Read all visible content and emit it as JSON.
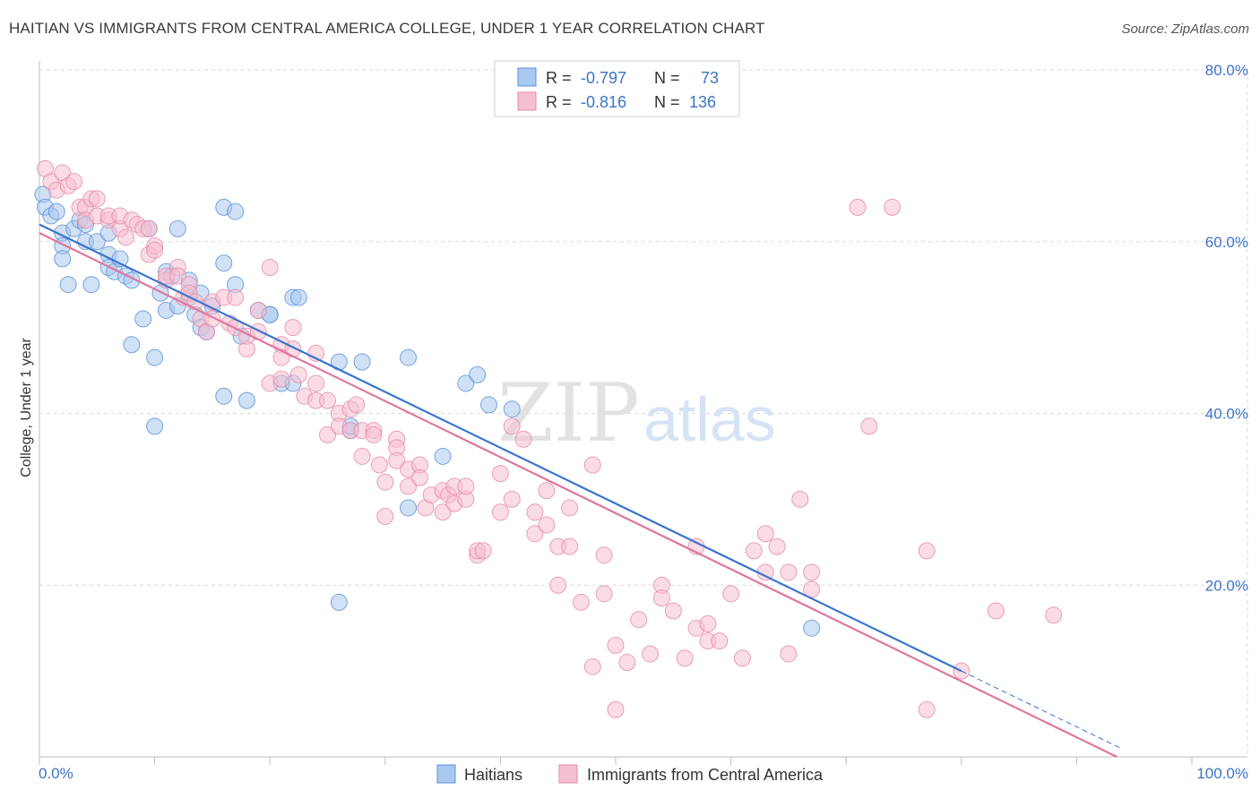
{
  "title": "HAITIAN VS IMMIGRANTS FROM CENTRAL AMERICA COLLEGE, UNDER 1 YEAR CORRELATION CHART",
  "source": "Source: ZipAtlas.com",
  "watermark": "ZIPatlas",
  "colors": {
    "blue_fill": "#a9c8ef",
    "blue_stroke": "#5a8fd6",
    "blue_line": "#3a74cf",
    "pink_fill": "#f6bfd0",
    "pink_stroke": "#e58aa8",
    "pink_line": "#e0769c",
    "axis_text": "#3b73c8",
    "grid": "#d9d9d9"
  },
  "legend": {
    "rows": [
      {
        "r_label": "R =",
        "r_value": "-0.797",
        "n_label": "N =",
        "n_value": "73"
      },
      {
        "r_label": "R =",
        "r_value": "-0.816",
        "n_label": "N =",
        "n_value": "136"
      }
    ]
  },
  "chart_data": {
    "type": "scatter",
    "ylabel": "College, Under 1 year",
    "xlim": [
      0,
      100
    ],
    "ylim": [
      0,
      80
    ],
    "x_tick_labels": [
      "0.0%",
      "100.0%"
    ],
    "y_ticks": [
      {
        "value": 20,
        "label": "20.0%"
      },
      {
        "value": 40,
        "label": "40.0%"
      },
      {
        "value": 60,
        "label": "60.0%"
      },
      {
        "value": 80,
        "label": "80.0%"
      }
    ],
    "grid": true,
    "legend_position": "top-center",
    "series": [
      {
        "name": "Haitians",
        "color": "#5a8fd6",
        "trend": {
          "x0": 0,
          "y0": 62.0,
          "x1": 80,
          "y1": 10.0,
          "dash_to_x": 94
        },
        "points": [
          [
            0.3,
            65.5
          ],
          [
            0.5,
            64
          ],
          [
            1,
            63
          ],
          [
            1.5,
            63.5
          ],
          [
            2,
            61
          ],
          [
            2,
            59.5
          ],
          [
            2,
            58
          ],
          [
            2.5,
            55
          ],
          [
            3,
            61.5
          ],
          [
            3.5,
            62.5
          ],
          [
            4,
            62
          ],
          [
            4,
            60
          ],
          [
            4.5,
            55
          ],
          [
            5,
            60
          ],
          [
            6,
            61
          ],
          [
            6,
            58.5
          ],
          [
            6,
            57
          ],
          [
            6.5,
            56.5
          ],
          [
            7,
            58
          ],
          [
            7.5,
            56
          ],
          [
            8,
            55.5
          ],
          [
            8,
            48
          ],
          [
            9,
            51
          ],
          [
            9.5,
            61.5
          ],
          [
            10,
            46.5
          ],
          [
            10,
            38.5
          ],
          [
            10.5,
            54
          ],
          [
            11,
            56.5
          ],
          [
            11,
            52
          ],
          [
            11.5,
            56
          ],
          [
            12,
            52.5
          ],
          [
            12,
            61.5
          ],
          [
            13,
            55.5
          ],
          [
            13,
            53.5
          ],
          [
            13.5,
            51.5
          ],
          [
            14,
            54
          ],
          [
            14,
            50
          ],
          [
            14.5,
            49.5
          ],
          [
            15,
            52.5
          ],
          [
            16,
            42
          ],
          [
            16,
            64
          ],
          [
            16,
            57.5
          ],
          [
            17,
            55
          ],
          [
            17,
            63.5
          ],
          [
            17.5,
            49
          ],
          [
            18,
            41.5
          ],
          [
            19,
            52
          ],
          [
            20,
            51.5
          ],
          [
            20,
            51.5
          ],
          [
            21,
            43.5
          ],
          [
            22,
            43.5
          ],
          [
            22,
            53.5
          ],
          [
            22.5,
            53.5
          ],
          [
            26,
            46
          ],
          [
            26,
            18
          ],
          [
            27,
            38
          ],
          [
            27,
            38.5
          ],
          [
            28,
            46
          ],
          [
            32,
            46.5
          ],
          [
            32,
            29
          ],
          [
            35,
            35
          ],
          [
            37,
            43.5
          ],
          [
            38,
            44.5
          ],
          [
            39,
            41
          ],
          [
            41,
            40.5
          ],
          [
            67,
            15
          ]
        ]
      },
      {
        "name": "Immigrants from Central America",
        "color": "#e58aa8",
        "trend": {
          "x0": 0,
          "y0": 61.0,
          "x1": 93.5,
          "y1": 0
        },
        "points": [
          [
            0.5,
            68.5
          ],
          [
            1,
            67
          ],
          [
            1.5,
            66
          ],
          [
            2,
            68
          ],
          [
            2.5,
            66.5
          ],
          [
            3,
            67
          ],
          [
            3.5,
            64
          ],
          [
            4,
            64
          ],
          [
            4,
            62.5
          ],
          [
            4.5,
            65
          ],
          [
            5,
            65
          ],
          [
            5,
            63
          ],
          [
            6,
            62.5
          ],
          [
            6,
            63
          ],
          [
            7,
            61.5
          ],
          [
            7,
            63
          ],
          [
            7.5,
            60.5
          ],
          [
            8,
            62.5
          ],
          [
            8.5,
            62
          ],
          [
            9,
            61.5
          ],
          [
            9.5,
            61.5
          ],
          [
            9.5,
            58.5
          ],
          [
            10,
            59.5
          ],
          [
            10,
            59
          ],
          [
            11,
            55.5
          ],
          [
            11,
            56
          ],
          [
            12,
            57
          ],
          [
            12,
            56
          ],
          [
            12.5,
            53.5
          ],
          [
            13,
            55
          ],
          [
            13,
            54
          ],
          [
            13.5,
            53
          ],
          [
            14,
            51
          ],
          [
            14.5,
            49.5
          ],
          [
            15,
            53
          ],
          [
            15,
            51
          ],
          [
            16,
            53.5
          ],
          [
            16.5,
            50.5
          ],
          [
            17,
            53.5
          ],
          [
            17,
            50
          ],
          [
            18,
            47.5
          ],
          [
            18,
            49
          ],
          [
            19,
            52
          ],
          [
            19,
            49.5
          ],
          [
            20,
            43.5
          ],
          [
            20,
            57
          ],
          [
            21,
            48
          ],
          [
            21,
            46.5
          ],
          [
            21,
            44
          ],
          [
            22,
            50
          ],
          [
            22,
            47.5
          ],
          [
            22.5,
            44.5
          ],
          [
            23,
            42
          ],
          [
            24,
            47
          ],
          [
            24,
            43.5
          ],
          [
            24,
            41.5
          ],
          [
            25,
            41.5
          ],
          [
            25,
            37.5
          ],
          [
            26,
            40
          ],
          [
            26,
            38.5
          ],
          [
            27,
            40.5
          ],
          [
            27,
            38
          ],
          [
            27.5,
            41
          ],
          [
            28,
            38
          ],
          [
            28,
            35
          ],
          [
            29,
            38
          ],
          [
            29,
            37.5
          ],
          [
            29.5,
            34
          ],
          [
            30,
            32
          ],
          [
            30,
            28
          ],
          [
            31,
            37
          ],
          [
            31,
            36
          ],
          [
            31,
            34.5
          ],
          [
            32,
            33.5
          ],
          [
            32,
            31.5
          ],
          [
            33,
            34
          ],
          [
            33,
            32.5
          ],
          [
            33.5,
            29
          ],
          [
            34,
            30.5
          ],
          [
            35,
            31
          ],
          [
            35,
            28.5
          ],
          [
            35.5,
            30.5
          ],
          [
            36,
            31.5
          ],
          [
            36,
            29.5
          ],
          [
            37,
            30
          ],
          [
            37,
            31.5
          ],
          [
            38,
            23.5
          ],
          [
            38,
            24
          ],
          [
            38.5,
            24
          ],
          [
            40,
            28.5
          ],
          [
            40,
            33
          ],
          [
            41,
            38.5
          ],
          [
            41,
            30
          ],
          [
            42,
            37
          ],
          [
            43,
            26
          ],
          [
            43,
            28.5
          ],
          [
            44,
            31
          ],
          [
            44,
            27
          ],
          [
            45,
            24.5
          ],
          [
            45,
            20
          ],
          [
            46,
            29
          ],
          [
            46,
            24.5
          ],
          [
            47,
            18
          ],
          [
            48,
            34
          ],
          [
            48,
            10.5
          ],
          [
            49,
            19
          ],
          [
            49,
            23.5
          ],
          [
            50,
            13
          ],
          [
            50,
            5.5
          ],
          [
            51,
            11
          ],
          [
            52,
            16
          ],
          [
            53,
            12
          ],
          [
            54,
            20
          ],
          [
            54,
            18.5
          ],
          [
            55,
            17
          ],
          [
            56,
            11.5
          ],
          [
            57,
            15
          ],
          [
            57,
            24.5
          ],
          [
            58,
            13.5
          ],
          [
            58,
            15.5
          ],
          [
            59,
            13.5
          ],
          [
            60,
            19
          ],
          [
            61,
            11.5
          ],
          [
            62,
            24
          ],
          [
            63,
            21.5
          ],
          [
            63,
            26
          ],
          [
            64,
            24.5
          ],
          [
            65,
            21.5
          ],
          [
            65,
            12
          ],
          [
            66,
            30
          ],
          [
            67,
            19.5
          ],
          [
            67,
            21.5
          ],
          [
            71,
            64
          ],
          [
            72,
            38.5
          ],
          [
            74,
            64
          ],
          [
            77,
            24
          ],
          [
            77,
            5.5
          ],
          [
            80,
            10
          ],
          [
            83,
            17
          ],
          [
            88,
            16.5
          ]
        ]
      }
    ]
  }
}
